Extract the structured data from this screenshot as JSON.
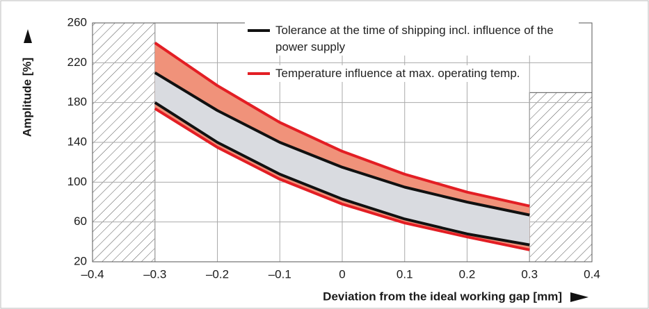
{
  "chart_data": {
    "type": "band",
    "x": [
      -0.3,
      -0.2,
      -0.1,
      0,
      0.1,
      0.2,
      0.3
    ],
    "series": [
      {
        "name": "Tolerance at the time of shipping incl. influence of the power supply",
        "color": "#111111",
        "values": [
          210,
          172,
          140,
          115,
          95,
          80,
          67
        ],
        "lower": [
          180,
          140,
          108,
          83,
          63,
          48,
          37
        ],
        "fill": "#d9dbe0"
      },
      {
        "name": "Temperature influence at max. operating temp.",
        "color": "#e31e24",
        "values": [
          240,
          197,
          160,
          131,
          108,
          90,
          76
        ],
        "lower": [
          174,
          135,
          103,
          78,
          59,
          45,
          32
        ],
        "fill": "#f0927a"
      }
    ],
    "xlim": [
      -0.4,
      0.4
    ],
    "xticks": [
      {
        "value": -0.4,
        "label": "–0.4"
      },
      {
        "value": -0.3,
        "label": "–0.3"
      },
      {
        "value": -0.2,
        "label": "–0.2"
      },
      {
        "value": -0.1,
        "label": "–0.1"
      },
      0,
      0.1,
      0.2,
      0.3,
      0.4
    ],
    "ylim": [
      20,
      260
    ],
    "yticks": [
      20,
      60,
      100,
      140,
      180,
      220,
      260
    ],
    "hatched_regions": [
      {
        "x": [
          -0.4,
          -0.3
        ],
        "y": [
          20,
          260
        ]
      },
      {
        "x": [
          0.3,
          0.4
        ],
        "y": [
          20,
          190
        ]
      }
    ],
    "xlabel": "Deviation from the ideal working gap [mm]",
    "ylabel": "Amplitude [%]",
    "grid": true
  }
}
